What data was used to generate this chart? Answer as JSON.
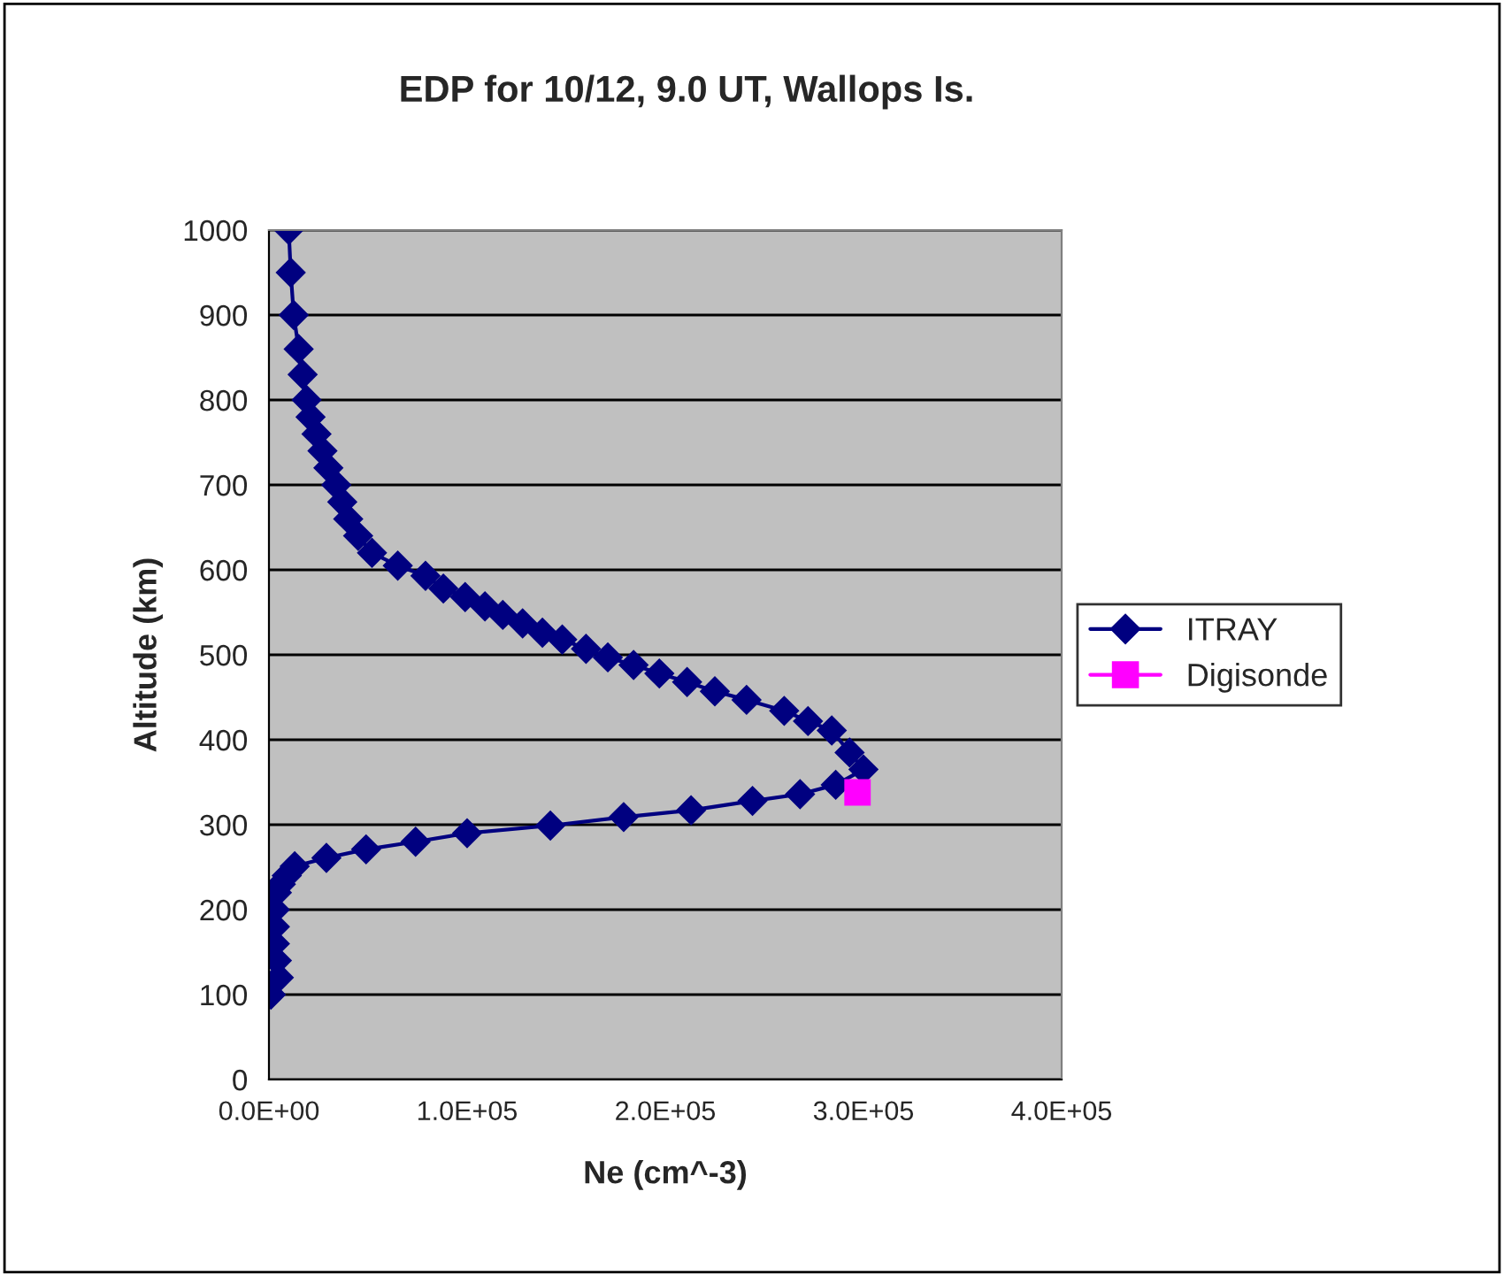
{
  "chart_data": {
    "type": "line",
    "title": "EDP for 10/12, 9.0 UT, Wallops Is.",
    "xlabel": "Ne (cm^-3)",
    "ylabel": "Altitude (km)",
    "series": [
      {
        "name": "ITRAY",
        "color": "#000080",
        "marker": "diamond",
        "x": [
          1000,
          5000,
          4000,
          3000,
          3000,
          3000,
          4000,
          6000,
          9000,
          13000,
          29000,
          49000,
          74000,
          100000,
          142000,
          179000,
          213000,
          244000,
          268000,
          286000,
          300000,
          293000,
          284000,
          272000,
          260000,
          241000,
          225000,
          211000,
          197000,
          184000,
          171000,
          160000,
          148000,
          138000,
          128000,
          118000,
          109000,
          99000,
          88000,
          79000,
          65000,
          52000,
          45000,
          40000,
          37000,
          34000,
          30000,
          27000,
          24000,
          21000,
          19000,
          17000,
          15000,
          12500,
          11000,
          10000
        ],
        "values": [
          100,
          120,
          140,
          160,
          180,
          200,
          220,
          230,
          240,
          251,
          261,
          271,
          280,
          290,
          299,
          309,
          317,
          328,
          336,
          347,
          365,
          385,
          411,
          422,
          434,
          447,
          457,
          468,
          478,
          488,
          497,
          507,
          518,
          526,
          537,
          547,
          557,
          568,
          578,
          593,
          605,
          620,
          640,
          660,
          680,
          700,
          720,
          740,
          760,
          780,
          800,
          830,
          860,
          900,
          950,
          1000
        ]
      },
      {
        "name": "Digisonde",
        "color": "#ff00ff",
        "marker": "square",
        "x": [
          297000
        ],
        "values": [
          338
        ]
      }
    ],
    "xlim": [
      0,
      400000
    ],
    "xticks": [
      {
        "value": 0,
        "label": "0.0E+00"
      },
      {
        "value": 100000,
        "label": "1.0E+05"
      },
      {
        "value": 200000,
        "label": "2.0E+05"
      },
      {
        "value": 300000,
        "label": "3.0E+05"
      },
      {
        "value": 400000,
        "label": "4.0E+05"
      }
    ],
    "ylim": [
      0,
      1000
    ],
    "yticks": [
      0,
      100,
      200,
      300,
      400,
      500,
      600,
      700,
      800,
      900,
      1000
    ],
    "grid": "y",
    "legend": "right",
    "line_style": "solid"
  }
}
